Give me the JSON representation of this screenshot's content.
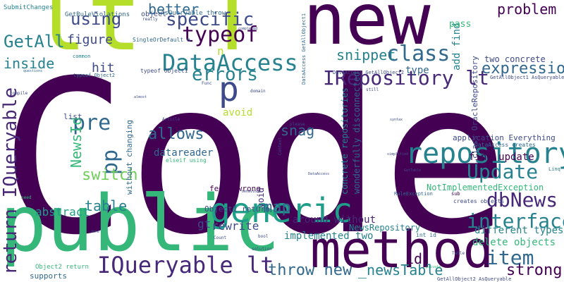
{
  "title": "",
  "colors": {
    "background": "#ffffff",
    "deep_purple": "#440154",
    "purple": "#482878",
    "indigo": "#3e4a89",
    "blue": "#31688e",
    "teal": "#26828e",
    "cyan": "#1f9e89",
    "green": "#35b779",
    "light_green": "#6ece58",
    "lime": "#b5de2b",
    "yellow": "#fde725"
  },
  "words": [
    {
      "text": "Code",
      "color": "#440154"
    },
    {
      "text": "public",
      "color": "#35b779"
    },
    {
      "text": "new",
      "color": "#440154"
    },
    {
      "text": "lt",
      "color": "#b5de2b"
    },
    {
      "text": "T",
      "color": "#b5de2b"
    },
    {
      "text": "gt",
      "color": "#440154"
    },
    {
      "text": "T",
      "color": "#440154"
    },
    {
      "text": "method",
      "color": "#440154"
    },
    {
      "text": "generic",
      "color": "#1f9e89"
    },
    {
      "text": "repository",
      "color": "#26828e"
    },
    {
      "text": "p",
      "color": "#3e4a89"
    },
    {
      "text": "IQueryable lt",
      "color": "#482878"
    },
    {
      "text": "DataAccess",
      "color": "#26828e"
    },
    {
      "text": "IRepository lt",
      "color": "#482878"
    },
    {
      "text": "class",
      "color": "#31688e"
    },
    {
      "text": "typeof",
      "color": "#440154"
    },
    {
      "text": "specific",
      "color": "#3e4a89"
    },
    {
      "text": "pre",
      "color": "#31688e"
    },
    {
      "text": "pp",
      "color": "#31688e"
    },
    {
      "text": "using",
      "color": "#3e4a89"
    },
    {
      "text": "GetAll",
      "color": "#26828e"
    },
    {
      "text": "errors",
      "color": "#26828e"
    },
    {
      "text": "return IQueryable",
      "color": "#482878"
    },
    {
      "text": "interface",
      "color": "#26828e"
    },
    {
      "text": "item",
      "color": "#31688e"
    },
    {
      "text": "dbNews",
      "color": "#482878"
    },
    {
      "text": "Update",
      "color": "#26828e"
    },
    {
      "text": "allows",
      "color": "#31688e"
    },
    {
      "text": "switch",
      "color": "#6ece58"
    },
    {
      "text": "table",
      "color": "#26828e"
    },
    {
      "text": "map",
      "color": "#31688e"
    },
    {
      "text": "problem",
      "color": "#440154"
    },
    {
      "text": "better",
      "color": "#31688e"
    },
    {
      "text": "expression",
      "color": "#31688e"
    },
    {
      "text": "snippet",
      "color": "#26828e"
    },
    {
      "text": "snag",
      "color": "#31688e"
    },
    {
      "text": "strong",
      "color": "#440154"
    },
    {
      "text": "throw new",
      "color": "#31688e"
    },
    {
      "text": "_newsTable",
      "color": "#26828e"
    },
    {
      "text": "NewsId",
      "color": "#35b779"
    },
    {
      "text": "inside",
      "color": "#26828e"
    },
    {
      "text": "figure",
      "color": "#3e4a89"
    },
    {
      "text": "hit",
      "color": "#3e4a89"
    },
    {
      "text": "n",
      "color": "#b5de2b"
    },
    {
      "text": "gt",
      "color": "#3e4a89"
    },
    {
      "text": "abstract",
      "color": "#1f9e89"
    },
    {
      "text": "rewrite",
      "color": "#3e4a89"
    },
    {
      "text": "Object1 return",
      "color": "#3e4a89"
    },
    {
      "text": "datareader",
      "color": "#31688e"
    },
    {
      "text": "avoid",
      "color": "#b5de2b"
    },
    {
      "text": "list",
      "color": "#3e4a89"
    },
    {
      "text": "without changing",
      "color": "#31688e"
    },
    {
      "text": "feels wrong",
      "color": "#440154"
    },
    {
      "text": "around without",
      "color": "#482878"
    },
    {
      "text": "implemented two",
      "color": "#26828e"
    },
    {
      "text": "NewsRepository",
      "color": "#26828e"
    },
    {
      "text": "NotImplementedException",
      "color": "#35b779"
    },
    {
      "text": "different types",
      "color": "#26828e"
    },
    {
      "text": "delete objects",
      "color": "#35b779"
    },
    {
      "text": "find update",
      "color": "#440154"
    },
    {
      "text": "two concrete",
      "color": "#3e4a89"
    },
    {
      "text": "add find",
      "color": "#26828e"
    },
    {
      "text": "pass",
      "color": "#35b779"
    },
    {
      "text": "type",
      "color": "#31688e"
    },
    {
      "text": "concrete repositories",
      "color": "#26828e"
    },
    {
      "text": "wonderfully disconnected",
      "color": "#31688e"
    },
    {
      "text": "class OracleRepository",
      "color": "#3e4a89"
    },
    {
      "text": "application Everything",
      "color": "#3e4a89"
    },
    {
      "text": "id",
      "color": "#440154"
    },
    {
      "text": "void",
      "color": "#482878"
    },
    {
      "text": "supports",
      "color": "#31688e"
    },
    {
      "text": "Object2 return",
      "color": "#35b779"
    },
    {
      "text": "SubmitChanges",
      "color": "#26828e"
    },
    {
      "text": "GetRuleViolations",
      "color": "#31688e"
    },
    {
      "text": "object",
      "color": "#3e4a89"
    },
    {
      "text": "AsQueryable throw",
      "color": "#31688e"
    },
    {
      "text": "SingleOrDefault n",
      "color": "#31688e"
    },
    {
      "text": "typeof Object1",
      "color": "#3e4a89"
    },
    {
      "text": "typeof Object2",
      "color": "#31688e"
    },
    {
      "text": "DataAccess GetAllObject1",
      "color": "#31688e"
    },
    {
      "text": "DataAccess GetAllObject2",
      "color": "#3e4a89"
    },
    {
      "text": "GetAllObject1 AsQueryable",
      "color": "#3e4a89"
    },
    {
      "text": "GetAllObject2 AsQueryable",
      "color": "#3e4a89"
    },
    {
      "text": "DataAccess creates",
      "color": "#31688e"
    },
    {
      "text": "creates objects",
      "color": "#3e4a89"
    },
    {
      "text": "int id",
      "color": "#31688e"
    },
    {
      "text": "RuleException",
      "color": "#31688e"
    },
    {
      "text": "Article",
      "color": "#3e4a89"
    },
    {
      "text": "elseif using",
      "color": "#35b779"
    },
    {
      "text": "common",
      "color": "#26828e"
    },
    {
      "text": "sub",
      "color": "#440154"
    },
    {
      "text": "really",
      "color": "#3e4a89"
    },
    {
      "text": "questions",
      "color": "#31688e"
    },
    {
      "text": "compile",
      "color": "#3e4a89"
    },
    {
      "text": "Count",
      "color": "#3e4a89"
    },
    {
      "text": "solution",
      "color": "#3e4a89"
    },
    {
      "text": "Table",
      "color": "#3e4a89"
    },
    {
      "text": "please",
      "color": "#3e4a89"
    },
    {
      "text": "Linq",
      "color": "#26828e"
    },
    {
      "text": "simplified",
      "color": "#3e4a89"
    },
    {
      "text": "behaviour",
      "color": "#3e4a89"
    },
    {
      "text": "still",
      "color": "#3e4a89"
    },
    {
      "text": "bool",
      "color": "#3e4a89"
    },
    {
      "text": "Context",
      "color": "#3e4a89"
    },
    {
      "text": "syntax",
      "color": "#3e4a89"
    },
    {
      "text": "GetTable",
      "color": "#3e4a89"
    },
    {
      "text": "private",
      "color": "#35b779"
    },
    {
      "text": "done",
      "color": "#3e4a89"
    },
    {
      "text": "almost",
      "color": "#3e4a89"
    },
    {
      "text": "need",
      "color": "#35b779"
    },
    {
      "text": "Func",
      "color": "#3e4a89"
    },
    {
      "text": "domain",
      "color": "#3e4a89"
    },
    {
      "text": "completed",
      "color": "#3e4a89"
    },
    {
      "text": "DataAccess",
      "color": "#3e4a89"
    }
  ]
}
